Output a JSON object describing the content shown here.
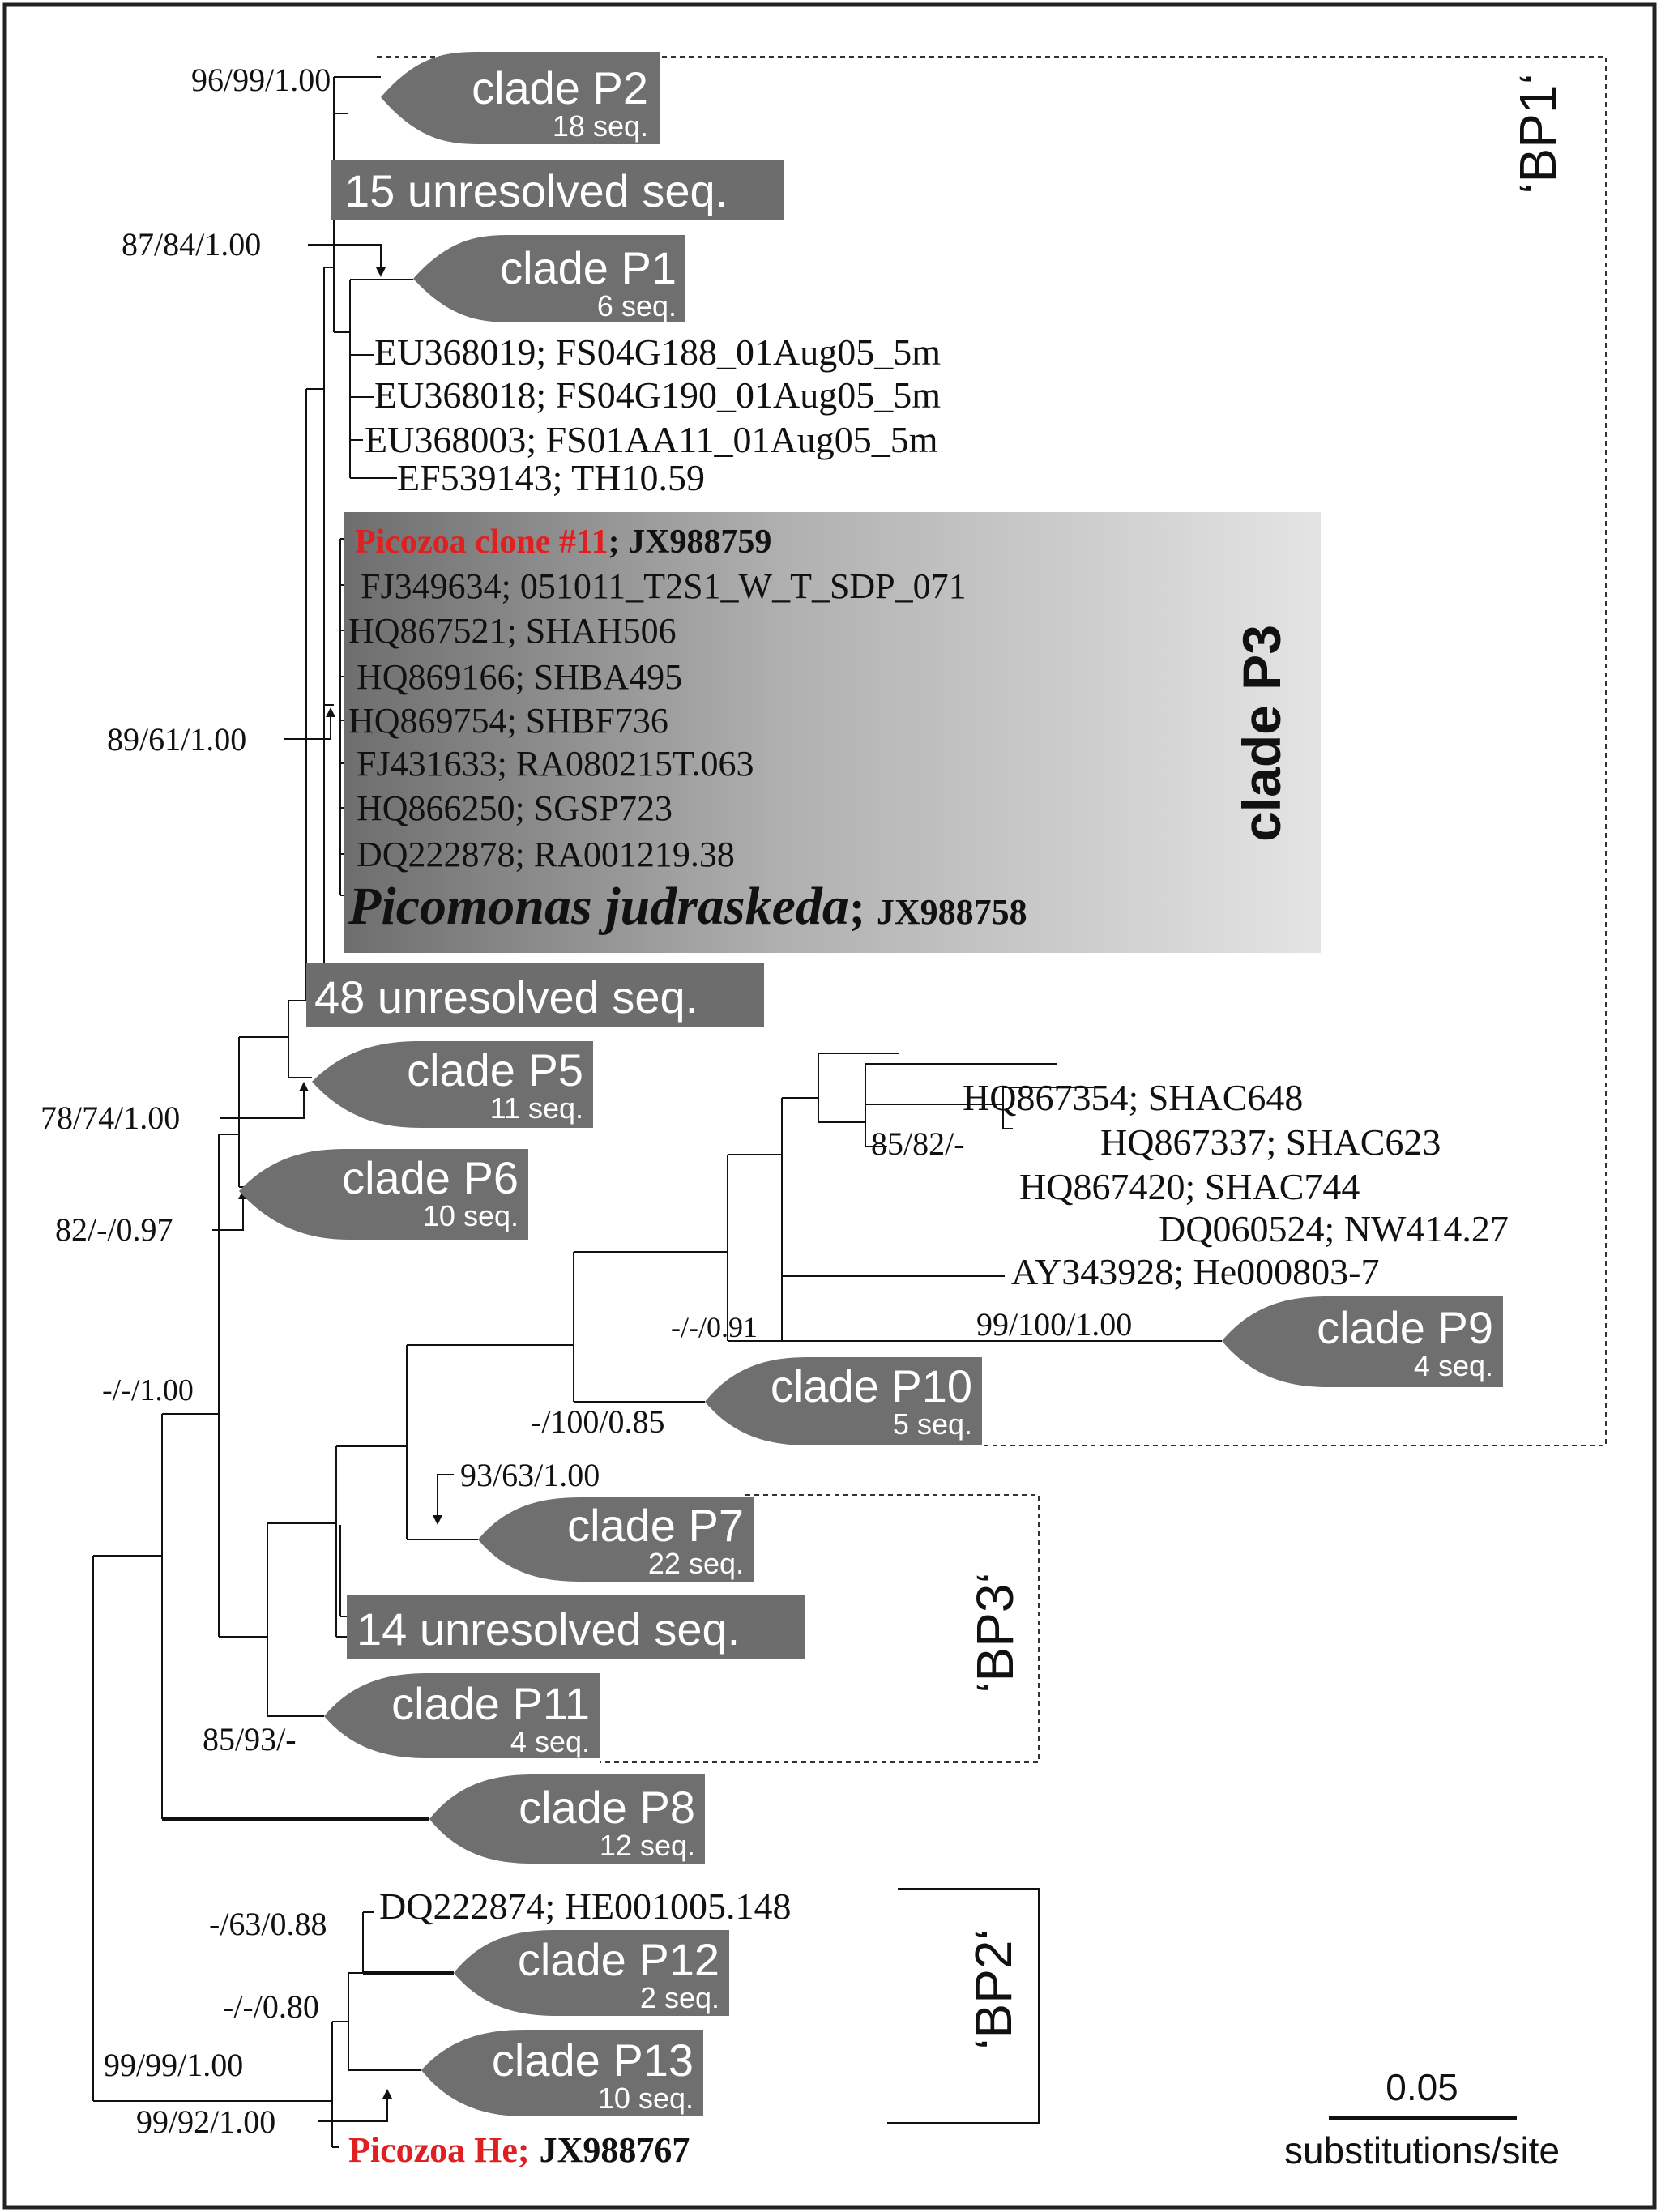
{
  "clades": {
    "p2": {
      "name": "clade P2",
      "count": "18 seq."
    },
    "p1": {
      "name": "clade P1",
      "count": "6 seq."
    },
    "p5": {
      "name": "clade P5",
      "count": "11 seq."
    },
    "p6": {
      "name": "clade P6",
      "count": "10 seq."
    },
    "p9": {
      "name": "clade P9",
      "count": "4 seq."
    },
    "p10": {
      "name": "clade P10",
      "count": "5 seq."
    },
    "p7": {
      "name": "clade P7",
      "count": "22 seq."
    },
    "p11": {
      "name": "clade P11",
      "count": "4 seq."
    },
    "p8": {
      "name": "clade P8",
      "count": "12 seq."
    },
    "p12": {
      "name": "clade P12",
      "count": "2 seq."
    },
    "p13": {
      "name": "clade P13",
      "count": "10 seq."
    }
  },
  "unresolved": {
    "u15": "15 unresolved seq.",
    "u48": "48 unresolved seq.",
    "u14": "14 unresolved seq."
  },
  "clade_p3": {
    "label": "clade P3",
    "clone11_name": "Picozoa clone #11",
    "clone11_acc": "; JX988759",
    "leaves": [
      "FJ349634; 051011_T2S1_W_T_SDP_071",
      "HQ867521; SHAH506",
      "HQ869166; SHBA495",
      "HQ869754; SHBF736",
      "FJ431633; RA080215T.063",
      "HQ866250; SGSP723",
      "DQ222878; RA001219.38"
    ],
    "picomonas_name": "Picomonas judraskeda",
    "picomonas_semicolon": ";",
    "picomonas_acc": "JX988758"
  },
  "leaves": {
    "eu368019": "EU368019; FS04G188_01Aug05_5m",
    "eu368018": "EU368018; FS04G190_01Aug05_5m",
    "eu368003": "EU368003; FS01AA11_01Aug05_5m",
    "ef539143": "EF539143; TH10.59",
    "hq867354": "HQ867354; SHAC648",
    "hq867337": "HQ867337; SHAC623",
    "hq867420": "HQ867420; SHAC744",
    "dq060524": "DQ060524; NW414.27",
    "ay343928": "AY343928; He000803-7",
    "dq222874": "DQ222874; HE001005.148",
    "picozoa_he_name": "Picozoa He;",
    "picozoa_he_acc": "JX988767"
  },
  "support": {
    "s1": "96/99/1.00",
    "s2": "87/84/1.00",
    "s3": "89/61/1.00",
    "s4": "78/74/1.00",
    "s5": "82/-/0.97",
    "s6": "85/82/-",
    "s7": "-/-/0.91",
    "s8": "99/100/1.00",
    "s9": "-/-/1.00",
    "s10": "-/100/0.85",
    "s11": "93/63/1.00",
    "s12": "85/93/-",
    "s13": "-/63/0.88",
    "s14": "-/-/0.80",
    "s15": "99/99/1.00",
    "s16": "99/92/1.00"
  },
  "groups": {
    "bp1": "‘BP1‘",
    "bp3": "‘BP3‘",
    "bp2": "‘BP2‘"
  },
  "scale": {
    "value": "0.05",
    "unit": "substitutions/site"
  },
  "colors": {
    "clade_fill": "#6f6f6f",
    "unresolved_fill": "#6d6d6d",
    "highlight_red": "#e02020",
    "p3_gradient_dark": "#6e6e6e",
    "p3_gradient_light": "#e4e4e4"
  }
}
